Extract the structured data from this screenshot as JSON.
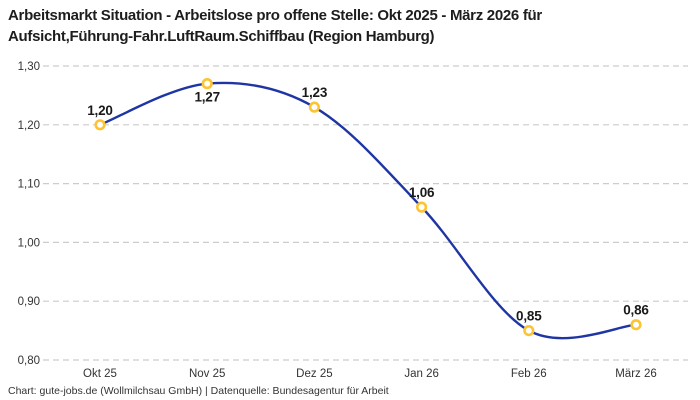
{
  "title": {
    "lines": [
      "Arbeitsmarkt Situation - Arbeitslose pro offene Stelle: Okt 2025 - März 2026 für",
      "Aufsicht,Führung-Fahr.LuftRaum.Schiffbau (Region Hamburg)"
    ]
  },
  "footer": {
    "text": "Chart: gute-jobs.de (Wollmilchsau GmbH) | Datenquelle: Bundesagentur für Arbeit"
  },
  "chart_data": {
    "type": "line",
    "title": "Arbeitsmarkt Situation - Arbeitslose pro offene Stelle: Okt 2025 - März 2026 für Aufsicht,Führung-Fahr.LuftRaum.Schiffbau (Region Hamburg)",
    "categories": [
      "Okt 25",
      "Nov 25",
      "Dez 25",
      "Jan 26",
      "Feb 26",
      "März 26"
    ],
    "values": [
      1.2,
      1.27,
      1.23,
      1.06,
      0.85,
      0.86
    ],
    "value_labels": [
      "1,20",
      "1,27",
      "1,23",
      "1,06",
      "0,85",
      "0,86"
    ],
    "label_positions": [
      "above",
      "below",
      "above",
      "above",
      "above",
      "above"
    ],
    "xlabel": "",
    "ylabel": "",
    "ylim": [
      0.8,
      1.3
    ],
    "ytick_values": [
      0.8,
      0.9,
      1.0,
      1.1,
      1.2,
      1.3
    ],
    "ytick_labels": [
      "0,80",
      "0,90",
      "1,00",
      "1,10",
      "1,20",
      "1,30"
    ],
    "grid": "horizontal-dashed",
    "legend": "none",
    "curve": "smooth",
    "colors": {
      "line": "#1e35a3",
      "marker_ring": "#fdc431",
      "marker_fill": "#ffffff",
      "grid": "#cccccc",
      "tick_text": "#333333",
      "value_text": "#1a1a1a",
      "background": "#ffffff"
    }
  }
}
